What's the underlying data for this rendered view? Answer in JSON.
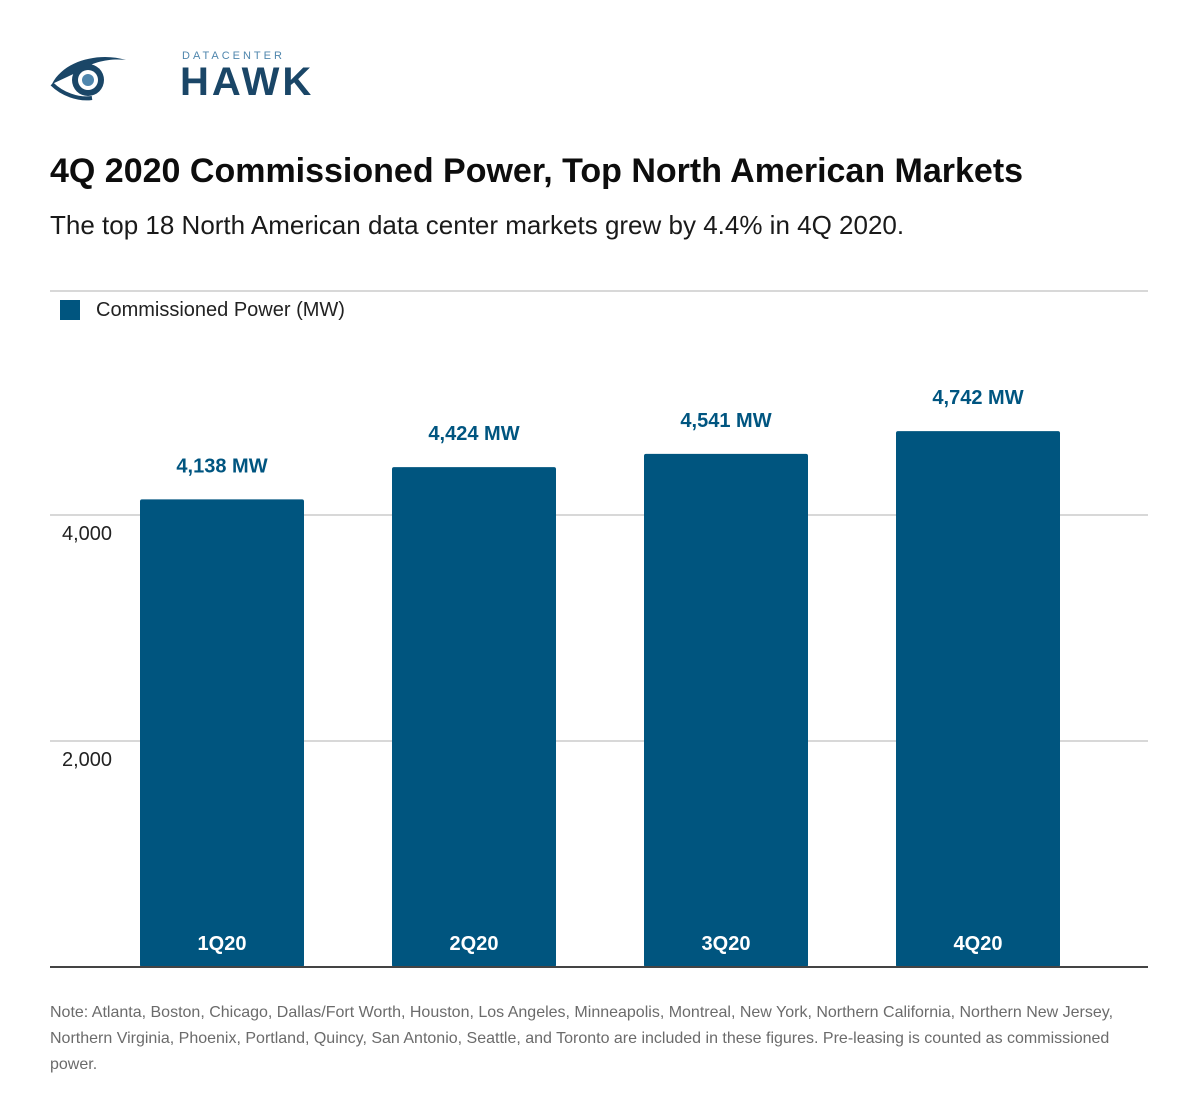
{
  "header": {
    "logo_small": "DATACENTER",
    "logo_big": "HAWK",
    "title": "4Q 2020 Commissioned Power, Top North American Markets",
    "subtitle": "The top 18 North American data center markets grew by 4.4% in 4Q 2020."
  },
  "note": "Note: Atlanta, Boston, Chicago, Dallas/Fort Worth, Houston, Los Angeles, Minneapolis, Montreal, New York, Northern California, Northern New Jersey, Northern Virginia, Phoenix, Portland, Quincy, San Antonio, Seattle, and Toronto are included in these figures. Pre-leasing is counted as commissioned power.",
  "colors": {
    "bar": "#00557f",
    "data_label": "#005580",
    "grid": "#cccccc",
    "logo_dark": "#1a4667",
    "logo_light": "#4f86ad"
  },
  "chart_data": {
    "type": "bar",
    "categories": [
      "1Q20",
      "2Q20",
      "3Q20",
      "4Q20"
    ],
    "series": [
      {
        "name": "Commissioned Power (MW)",
        "values": [
          4138,
          4424,
          4541,
          4742
        ]
      }
    ],
    "data_labels": [
      "4,138 MW",
      "4,424 MW",
      "4,541 MW",
      "4,742 MW"
    ],
    "title": "4Q 2020 Commissioned Power, Top North American Markets",
    "xlabel": "",
    "ylabel": "",
    "ylim": [
      0,
      5600
    ],
    "yticks": [
      2000,
      4000
    ],
    "ytick_labels": [
      "2,000",
      "4,000"
    ],
    "grid": true,
    "legend_position": "top-left"
  }
}
